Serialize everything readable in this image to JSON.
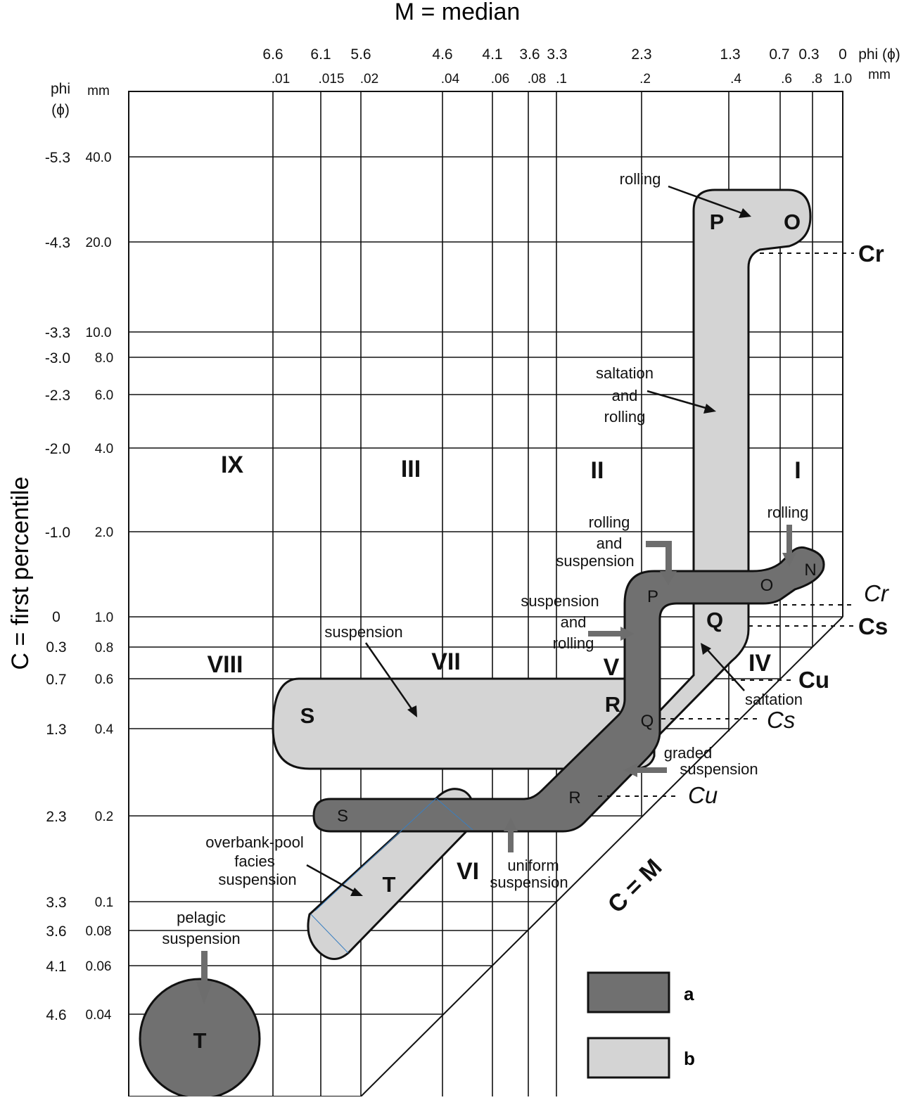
{
  "title": "M = median",
  "y_axis_title": "C = first percentile",
  "diagonal_label": "C = M",
  "top_axis": {
    "phi_label": "phi (ϕ)",
    "mm_label": "mm",
    "phi_ticks": [
      "6.6",
      "6.1",
      "5.6",
      "4.6",
      "4.1",
      "3.6",
      "3.3",
      "2.3",
      "1.3",
      "0.7",
      "0.3",
      "0"
    ],
    "mm_ticks": [
      ".01",
      ".015",
      ".02",
      ".04",
      ".06",
      ".08",
      ".1",
      ".2",
      ".4",
      ".6",
      ".8",
      "1.0"
    ]
  },
  "left_axis": {
    "phi_label": "phi",
    "phi_label2": "(ϕ)",
    "mm_label": "mm",
    "phi_ticks": [
      "-5.3",
      "-4.3",
      "-3.3",
      "-3.0",
      "-2.3",
      "-2.0",
      "-1.0",
      "0",
      "0.3",
      "0.7",
      "1.3",
      "2.3",
      "3.3",
      "3.6",
      "4.1",
      "4.6"
    ],
    "mm_ticks": [
      "40.0",
      "20.0",
      "10.0",
      "8.0",
      "6.0",
      "4.0",
      "2.0",
      "1.0",
      "0.8",
      "0.6",
      "0.4",
      "0.2",
      "0.1",
      "0.08",
      "0.06",
      "0.04"
    ]
  },
  "zones": [
    "IX",
    "III",
    "II",
    "I",
    "VIII",
    "VII",
    "V",
    "IV",
    "VI"
  ],
  "segment_letters_b": [
    "P",
    "O",
    "Q",
    "R",
    "S",
    "T"
  ],
  "segment_letters_a": [
    "N",
    "O",
    "P",
    "Q",
    "R",
    "S",
    "T"
  ],
  "limits": {
    "cr_b": "Cr",
    "cs_b": "Cs",
    "cu_b": "Cu",
    "cr_a": "Cr",
    "cs_a": "Cs",
    "cu_a": "Cu"
  },
  "annotations": {
    "rolling_top": "rolling",
    "saltation_rolling": [
      "saltation",
      "and",
      "rolling"
    ],
    "rolling_right": "rolling",
    "rolling_suspension": [
      "rolling",
      "and",
      "suspension"
    ],
    "suspension_rolling": [
      "suspension",
      "and",
      "rolling"
    ],
    "suspension": "suspension",
    "saltation": "saltation",
    "graded_suspension": [
      "graded",
      "suspension"
    ],
    "uniform_suspension": [
      "uniform",
      "suspension"
    ],
    "overbank": [
      "overbank-pool",
      "facies",
      "suspension"
    ],
    "pelagic": [
      "pelagic",
      "suspension"
    ]
  },
  "legend": [
    {
      "key": "a",
      "color": "#707070"
    },
    {
      "key": "b",
      "color": "#d4d4d4"
    }
  ],
  "colors": {
    "dark_pattern": "#707070",
    "light_pattern": "#d4d4d4",
    "arrow_gray": "#6d6d6d"
  }
}
